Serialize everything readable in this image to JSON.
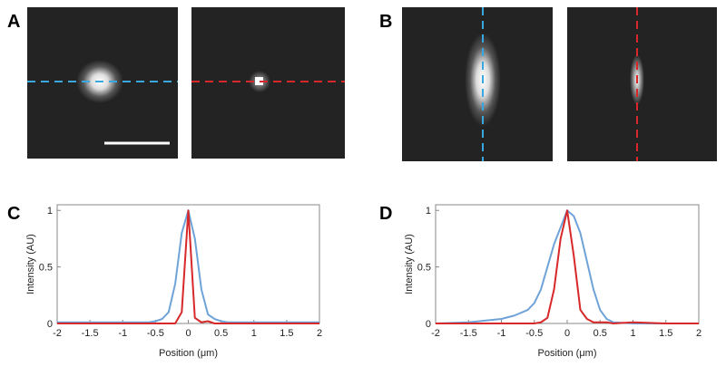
{
  "panel_labels": [
    "A",
    "B",
    "C",
    "D"
  ],
  "chart_data": [
    {
      "type": "line",
      "xlabel": "Position (μm)",
      "ylabel": "Intensity (AU)",
      "x": [
        -2,
        -1.5,
        -1,
        -0.6,
        -0.5,
        -0.4,
        -0.3,
        -0.2,
        -0.1,
        0,
        0.1,
        0.2,
        0.3,
        0.4,
        0.5,
        0.6,
        1,
        1.5,
        2
      ],
      "series": [
        {
          "color": "#6fa3d8",
          "values": [
            0.01,
            0.01,
            0.01,
            0.01,
            0.02,
            0.04,
            0.1,
            0.35,
            0.8,
            1,
            0.75,
            0.3,
            0.08,
            0.04,
            0.02,
            0.01,
            0.01,
            0.01,
            0.01
          ]
        },
        {
          "color": "#d7282a",
          "values": [
            0,
            0,
            0,
            0,
            0,
            0,
            0,
            0,
            0.1,
            1,
            0.05,
            0.01,
            0.02,
            0,
            0,
            0,
            0,
            0,
            0
          ]
        }
      ],
      "xlim": [
        -2,
        2
      ],
      "xticks": [
        -2,
        -1.5,
        -1,
        -0.5,
        0,
        0.5,
        1,
        1.5,
        2
      ],
      "ylim": [
        0,
        1.05
      ],
      "yticks": [
        0,
        0.5,
        1
      ]
    },
    {
      "type": "line",
      "xlabel": "Position (μm)",
      "ylabel": "Intensity (AU)",
      "x": [
        -2,
        -1.5,
        -1,
        -0.8,
        -0.6,
        -0.5,
        -0.4,
        -0.3,
        -0.2,
        -0.1,
        0,
        0.1,
        0.2,
        0.3,
        0.4,
        0.5,
        0.6,
        0.7,
        1,
        1.5,
        2
      ],
      "series": [
        {
          "color": "#6fa3d8",
          "values": [
            0,
            0.01,
            0.04,
            0.07,
            0.12,
            0.18,
            0.3,
            0.5,
            0.7,
            0.85,
            1,
            0.95,
            0.8,
            0.55,
            0.3,
            0.12,
            0.04,
            0.01,
            0,
            0,
            0
          ]
        },
        {
          "color": "#d7282a",
          "values": [
            0,
            0,
            0,
            0,
            0,
            0,
            0.01,
            0.05,
            0.3,
            0.75,
            1,
            0.6,
            0.12,
            0.04,
            0.01,
            0.01,
            0.01,
            0,
            0.01,
            0,
            0
          ]
        }
      ],
      "xlim": [
        -2,
        2
      ],
      "xticks": [
        -2,
        -1.5,
        -1,
        -0.5,
        0,
        0.5,
        1,
        1.5,
        2
      ],
      "ylim": [
        0,
        1.05
      ],
      "yticks": [
        0,
        0.5,
        1
      ]
    }
  ]
}
